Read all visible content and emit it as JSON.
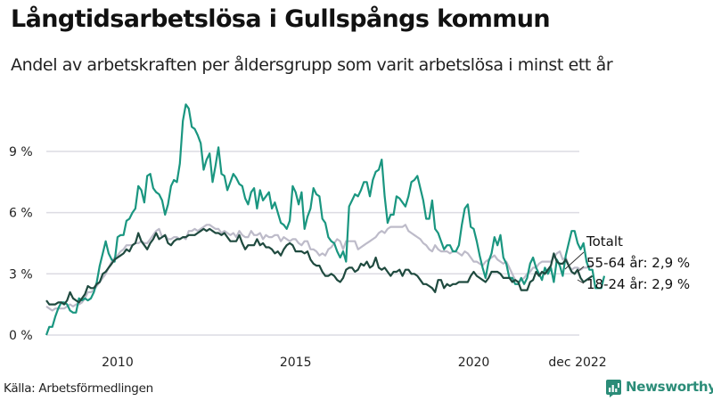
{
  "header": {
    "title": "Långtidsarbetslösa i Gullspångs kommun",
    "subtitle": "Andel av arbetskraften per åldersgrupp som varit arbetslösa i minst ett år"
  },
  "footer": {
    "source": "Källa: Arbetsförmedlingen",
    "brand": "Newsworthy"
  },
  "colors": {
    "young": "#1a9680",
    "old": "#1f4a3f",
    "total": "#bdbbc9",
    "grid": "#dcdbe3"
  },
  "chart_data": {
    "type": "line",
    "title": "Långtidsarbetslösa i Gullspångs kommun",
    "xlabel": "",
    "ylabel": "",
    "x_start": "2008-01",
    "x_end": "2022-12",
    "x_unit": "month",
    "xticks": [
      {
        "label": "2010",
        "month_index": 24
      },
      {
        "label": "2015",
        "month_index": 84
      },
      {
        "label": "2020",
        "month_index": 144
      },
      {
        "label": "dec 2022",
        "month_index": 179
      }
    ],
    "yticks": [
      {
        "label": "0 %",
        "value": 0
      },
      {
        "label": "3 %",
        "value": 3
      },
      {
        "label": "6 %",
        "value": 6
      },
      {
        "label": "9 %",
        "value": 9
      }
    ],
    "ylim": [
      0,
      11.5
    ],
    "grid": true,
    "legend": "end-labels",
    "end_labels": [
      {
        "series": "total",
        "text": "Totalt"
      },
      {
        "series": "old",
        "text": "55-64 år: 2,9 %"
      },
      {
        "series": "young",
        "text": "18-24 år: 2,9 %"
      }
    ],
    "series": [
      {
        "key": "young",
        "name": "18-24 år",
        "values": [
          0.0,
          0.4,
          0.4,
          0.9,
          1.3,
          1.6,
          1.6,
          1.5,
          1.2,
          1.1,
          1.1,
          1.8,
          1.7,
          1.8,
          1.7,
          1.8,
          2.1,
          2.6,
          3.4,
          4.0,
          4.6,
          4.0,
          3.7,
          3.6,
          4.8,
          4.9,
          4.9,
          5.6,
          5.7,
          6.0,
          6.2,
          7.3,
          7.1,
          6.5,
          7.8,
          7.9,
          7.2,
          7.0,
          6.9,
          6.6,
          5.9,
          6.4,
          7.3,
          7.6,
          7.5,
          8.4,
          10.5,
          11.3,
          11.1,
          10.2,
          10.1,
          9.8,
          9.4,
          8.1,
          8.6,
          8.9,
          7.5,
          8.3,
          9.2,
          7.9,
          7.8,
          7.1,
          7.5,
          7.9,
          7.7,
          7.4,
          7.3,
          6.7,
          6.4,
          7.0,
          7.2,
          6.2,
          7.1,
          6.6,
          6.8,
          7.0,
          6.2,
          6.5,
          6.0,
          5.5,
          5.4,
          5.2,
          5.6,
          7.3,
          7.0,
          6.4,
          7.0,
          5.2,
          5.8,
          6.2,
          7.2,
          6.9,
          6.8,
          5.7,
          5.5,
          4.8,
          4.6,
          4.5,
          4.1,
          3.8,
          4.1,
          3.6,
          6.3,
          6.6,
          6.9,
          6.8,
          7.1,
          7.5,
          7.5,
          6.8,
          7.6,
          8.0,
          8.1,
          8.6,
          6.8,
          5.5,
          5.9,
          5.9,
          6.8,
          6.7,
          6.5,
          6.3,
          6.8,
          7.5,
          7.6,
          7.8,
          7.2,
          6.6,
          5.7,
          5.7,
          6.6,
          5.2,
          5.0,
          4.6,
          4.2,
          4.4,
          4.4,
          4.1,
          4.1,
          4.4,
          5.4,
          6.2,
          6.4,
          5.3,
          5.2,
          4.6,
          3.9,
          3.3,
          2.8,
          3.6,
          4.0,
          4.8,
          4.4,
          4.9,
          3.8,
          3.5,
          2.8,
          2.8,
          2.5,
          2.5,
          2.8,
          2.5,
          2.8,
          3.5,
          3.8,
          3.3,
          3.0,
          2.7,
          3.3,
          3.0,
          3.3,
          2.6,
          3.7,
          3.4,
          2.9,
          3.9,
          4.5,
          5.1,
          5.1,
          4.5,
          4.2,
          4.5,
          3.6,
          3.2,
          3.2,
          2.3,
          2.3,
          2.3,
          2.9
        ]
      },
      {
        "key": "old",
        "name": "55-64 år",
        "values": [
          1.7,
          1.5,
          1.5,
          1.5,
          1.6,
          1.6,
          1.5,
          1.7,
          2.1,
          1.8,
          1.7,
          1.6,
          1.8,
          2.0,
          2.4,
          2.3,
          2.3,
          2.5,
          2.6,
          3.0,
          3.1,
          3.3,
          3.5,
          3.7,
          3.8,
          3.9,
          4.0,
          4.2,
          4.1,
          4.4,
          4.5,
          5.0,
          4.6,
          4.4,
          4.2,
          4.5,
          4.7,
          5.0,
          4.7,
          4.8,
          4.9,
          4.5,
          4.4,
          4.6,
          4.7,
          4.7,
          4.8,
          4.8,
          4.9,
          4.9,
          4.9,
          5.0,
          5.1,
          5.2,
          5.1,
          5.2,
          5.1,
          5.0,
          5.0,
          4.9,
          5.0,
          4.8,
          4.6,
          4.6,
          4.6,
          4.9,
          4.5,
          4.2,
          4.4,
          4.4,
          4.4,
          4.7,
          4.4,
          4.5,
          4.3,
          4.3,
          4.2,
          4.0,
          4.1,
          3.9,
          4.2,
          4.4,
          4.5,
          4.4,
          4.1,
          4.1,
          4.1,
          4.0,
          4.1,
          3.7,
          3.5,
          3.4,
          3.4,
          3.1,
          2.9,
          2.9,
          3.0,
          2.9,
          2.7,
          2.6,
          2.8,
          3.2,
          3.3,
          3.3,
          3.1,
          3.2,
          3.5,
          3.4,
          3.6,
          3.3,
          3.4,
          3.8,
          3.3,
          3.2,
          3.3,
          3.1,
          2.9,
          3.1,
          3.1,
          3.2,
          2.9,
          3.2,
          3.2,
          3.0,
          3.0,
          2.9,
          2.7,
          2.5,
          2.5,
          2.4,
          2.3,
          2.1,
          2.7,
          2.7,
          2.3,
          2.5,
          2.4,
          2.5,
          2.5,
          2.6,
          2.6,
          2.6,
          2.6,
          2.9,
          3.1,
          2.9,
          2.8,
          2.7,
          2.6,
          2.8,
          3.1,
          3.1,
          3.1,
          3.0,
          2.8,
          2.8,
          2.8,
          2.6,
          2.7,
          2.6,
          2.2,
          2.2,
          2.2,
          2.6,
          2.7,
          3.1,
          2.9,
          3.1,
          3.0,
          3.2,
          3.4,
          4.0,
          3.6,
          3.5,
          3.5,
          3.7,
          3.4,
          3.1,
          3.0,
          3.2,
          2.8,
          2.6,
          2.7,
          2.8,
          2.9
        ]
      },
      {
        "key": "total",
        "name": "Totalt",
        "values": [
          1.4,
          1.3,
          1.2,
          1.3,
          1.3,
          1.3,
          1.3,
          1.4,
          1.5,
          1.4,
          1.5,
          1.5,
          1.6,
          1.8,
          2.1,
          2.1,
          2.2,
          2.4,
          2.6,
          2.8,
          3.0,
          3.3,
          3.6,
          3.8,
          3.9,
          4.1,
          4.2,
          4.4,
          4.4,
          4.4,
          4.5,
          4.5,
          4.6,
          4.5,
          4.5,
          4.7,
          4.9,
          5.1,
          5.2,
          4.8,
          4.9,
          4.7,
          4.7,
          4.8,
          4.8,
          4.7,
          4.8,
          4.7,
          5.1,
          5.1,
          5.2,
          5.1,
          5.2,
          5.3,
          5.4,
          5.4,
          5.3,
          5.2,
          5.2,
          5.0,
          5.1,
          5.0,
          4.9,
          5.0,
          4.8,
          5.1,
          4.9,
          4.8,
          4.8,
          5.1,
          4.9,
          4.9,
          5.0,
          4.7,
          4.9,
          4.8,
          4.8,
          4.9,
          4.9,
          4.6,
          4.8,
          4.7,
          4.6,
          4.7,
          4.7,
          4.5,
          4.4,
          4.6,
          4.6,
          4.2,
          4.2,
          4.1,
          3.9,
          4.0,
          3.9,
          4.2,
          4.3,
          4.5,
          4.7,
          4.6,
          4.2,
          4.6,
          4.6,
          4.6,
          4.6,
          4.2,
          4.3,
          4.4,
          4.5,
          4.6,
          4.7,
          4.8,
          5.0,
          5.1,
          5.0,
          5.2,
          5.3,
          5.3,
          5.3,
          5.3,
          5.3,
          5.4,
          5.1,
          5.0,
          4.9,
          4.8,
          4.7,
          4.5,
          4.4,
          4.2,
          4.1,
          4.4,
          4.2,
          4.1,
          4.1,
          4.1,
          4.0,
          4.1,
          4.1,
          4.0,
          3.9,
          4.1,
          4.0,
          3.8,
          3.6,
          3.6,
          3.5,
          3.4,
          3.6,
          3.7,
          3.8,
          3.9,
          3.7,
          3.6,
          3.5,
          3.6,
          3.3,
          3.0,
          2.7,
          2.6,
          2.7,
          2.8,
          3.0,
          3.1,
          3.3,
          3.3,
          3.5,
          3.6,
          3.6,
          3.6,
          3.6,
          3.8,
          4.0,
          4.1,
          3.7,
          3.8,
          3.4,
          3.2,
          3.3,
          3.3,
          3.2,
          3.3,
          3.3,
          3.4,
          3.4
        ]
      }
    ]
  }
}
